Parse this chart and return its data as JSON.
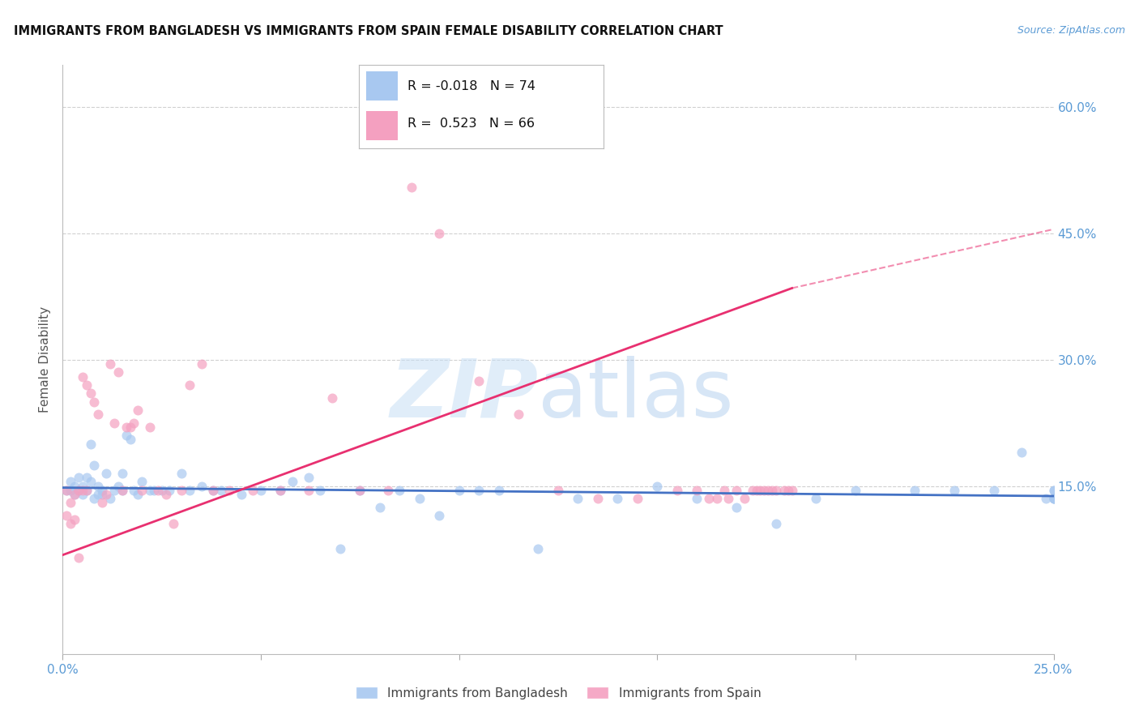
{
  "title": "IMMIGRANTS FROM BANGLADESH VS IMMIGRANTS FROM SPAIN FEMALE DISABILITY CORRELATION CHART",
  "source": "Source: ZipAtlas.com",
  "ylabel": "Female Disability",
  "xlim": [
    0.0,
    0.25
  ],
  "ylim": [
    -0.05,
    0.65
  ],
  "ytick_labels_right": [
    "60.0%",
    "45.0%",
    "30.0%",
    "15.0%"
  ],
  "ytick_vals_right": [
    0.6,
    0.45,
    0.3,
    0.15
  ],
  "gridline_color": "#d0d0d0",
  "background_color": "#ffffff",
  "legend_R1": "-0.018",
  "legend_N1": "74",
  "legend_R2": "0.523",
  "legend_N2": "66",
  "color_bangladesh": "#a8c8f0",
  "color_spain": "#f4a0c0",
  "trend_color_bangladesh": "#4472c4",
  "trend_color_spain": "#e83070",
  "scatter_alpha": 0.7,
  "marker_size": 75,
  "bangladesh_x": [
    0.001,
    0.002,
    0.002,
    0.003,
    0.003,
    0.004,
    0.004,
    0.005,
    0.005,
    0.006,
    0.006,
    0.007,
    0.007,
    0.008,
    0.008,
    0.009,
    0.009,
    0.01,
    0.01,
    0.011,
    0.012,
    0.013,
    0.014,
    0.015,
    0.015,
    0.016,
    0.017,
    0.018,
    0.019,
    0.02,
    0.022,
    0.023,
    0.025,
    0.027,
    0.03,
    0.032,
    0.035,
    0.038,
    0.04,
    0.045,
    0.05,
    0.055,
    0.058,
    0.062,
    0.065,
    0.07,
    0.075,
    0.08,
    0.085,
    0.09,
    0.095,
    0.1,
    0.105,
    0.11,
    0.12,
    0.13,
    0.14,
    0.15,
    0.16,
    0.17,
    0.18,
    0.19,
    0.2,
    0.215,
    0.225,
    0.235,
    0.242,
    0.248,
    0.25,
    0.25,
    0.25,
    0.25,
    0.25,
    0.25
  ],
  "bangladesh_y": [
    0.145,
    0.155,
    0.145,
    0.14,
    0.15,
    0.145,
    0.16,
    0.15,
    0.14,
    0.145,
    0.16,
    0.155,
    0.2,
    0.135,
    0.175,
    0.14,
    0.15,
    0.145,
    0.14,
    0.165,
    0.135,
    0.145,
    0.15,
    0.145,
    0.165,
    0.21,
    0.205,
    0.145,
    0.14,
    0.155,
    0.145,
    0.145,
    0.145,
    0.145,
    0.165,
    0.145,
    0.15,
    0.145,
    0.145,
    0.14,
    0.145,
    0.145,
    0.155,
    0.16,
    0.145,
    0.075,
    0.145,
    0.125,
    0.145,
    0.135,
    0.115,
    0.145,
    0.145,
    0.145,
    0.075,
    0.135,
    0.135,
    0.15,
    0.135,
    0.125,
    0.105,
    0.135,
    0.145,
    0.145,
    0.145,
    0.145,
    0.19,
    0.135,
    0.135,
    0.145,
    0.135,
    0.135,
    0.145,
    0.135
  ],
  "spain_x": [
    0.001,
    0.001,
    0.002,
    0.002,
    0.003,
    0.003,
    0.004,
    0.004,
    0.005,
    0.005,
    0.006,
    0.006,
    0.007,
    0.008,
    0.009,
    0.01,
    0.011,
    0.012,
    0.013,
    0.014,
    0.015,
    0.016,
    0.017,
    0.018,
    0.019,
    0.02,
    0.022,
    0.024,
    0.026,
    0.028,
    0.03,
    0.032,
    0.035,
    0.038,
    0.042,
    0.048,
    0.055,
    0.062,
    0.068,
    0.075,
    0.082,
    0.088,
    0.095,
    0.105,
    0.115,
    0.125,
    0.135,
    0.145,
    0.155,
    0.16,
    0.163,
    0.165,
    0.167,
    0.168,
    0.17,
    0.172,
    0.174,
    0.175,
    0.176,
    0.177,
    0.178,
    0.179,
    0.18,
    0.182,
    0.183,
    0.184
  ],
  "spain_y": [
    0.145,
    0.115,
    0.13,
    0.105,
    0.14,
    0.11,
    0.065,
    0.145,
    0.145,
    0.28,
    0.27,
    0.145,
    0.26,
    0.25,
    0.235,
    0.13,
    0.14,
    0.295,
    0.225,
    0.285,
    0.145,
    0.22,
    0.22,
    0.225,
    0.24,
    0.145,
    0.22,
    0.145,
    0.14,
    0.105,
    0.145,
    0.27,
    0.295,
    0.145,
    0.145,
    0.145,
    0.145,
    0.145,
    0.255,
    0.145,
    0.145,
    0.505,
    0.45,
    0.275,
    0.235,
    0.145,
    0.135,
    0.135,
    0.145,
    0.145,
    0.135,
    0.135,
    0.145,
    0.135,
    0.145,
    0.135,
    0.145,
    0.145,
    0.145,
    0.145,
    0.145,
    0.145,
    0.145,
    0.145,
    0.145,
    0.145
  ],
  "trend_bang_x0": 0.0,
  "trend_bang_x1": 0.25,
  "trend_bang_y0": 0.148,
  "trend_bang_y1": 0.138,
  "trend_spain_x0": 0.0,
  "trend_spain_x1": 0.184,
  "trend_spain_y0": 0.068,
  "trend_spain_y1": 0.385,
  "trend_spain_dash_x0": 0.184,
  "trend_spain_dash_x1": 0.25,
  "trend_spain_dash_y0": 0.385,
  "trend_spain_dash_y1": 0.455
}
